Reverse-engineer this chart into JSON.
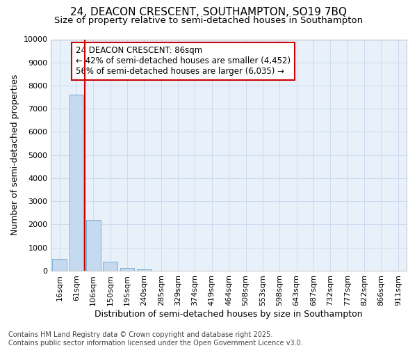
{
  "title_line1": "24, DEACON CRESCENT, SOUTHAMPTON, SO19 7BQ",
  "title_line2": "Size of property relative to semi-detached houses in Southampton",
  "xlabel": "Distribution of semi-detached houses by size in Southampton",
  "ylabel": "Number of semi-detached properties",
  "categories": [
    "16sqm",
    "61sqm",
    "106sqm",
    "150sqm",
    "195sqm",
    "240sqm",
    "285sqm",
    "329sqm",
    "374sqm",
    "419sqm",
    "464sqm",
    "508sqm",
    "553sqm",
    "598sqm",
    "643sqm",
    "687sqm",
    "732sqm",
    "777sqm",
    "822sqm",
    "866sqm",
    "911sqm"
  ],
  "values": [
    500,
    7600,
    2200,
    380,
    130,
    50,
    0,
    0,
    0,
    0,
    0,
    0,
    0,
    0,
    0,
    0,
    0,
    0,
    0,
    0,
    0
  ],
  "bar_color": "#c5d9f0",
  "bar_edge_color": "#7bafd4",
  "grid_color": "#c8d8ed",
  "background_color": "#ffffff",
  "plot_bg_color": "#e8f0fa",
  "annotation_box_color": "#cc0000",
  "vline_color": "#cc0000",
  "vline_x": 1.5,
  "annotation_title": "24 DEACON CRESCENT: 86sqm",
  "annotation_line1": "← 42% of semi-detached houses are smaller (4,452)",
  "annotation_line2": "56% of semi-detached houses are larger (6,035) →",
  "ylim": [
    0,
    10000
  ],
  "yticks": [
    0,
    1000,
    2000,
    3000,
    4000,
    5000,
    6000,
    7000,
    8000,
    9000,
    10000
  ],
  "footer_line1": "Contains HM Land Registry data © Crown copyright and database right 2025.",
  "footer_line2": "Contains public sector information licensed under the Open Government Licence v3.0.",
  "title_fontsize": 11,
  "subtitle_fontsize": 9.5,
  "axis_label_fontsize": 9,
  "tick_fontsize": 8,
  "annotation_fontsize": 8.5,
  "footer_fontsize": 7
}
